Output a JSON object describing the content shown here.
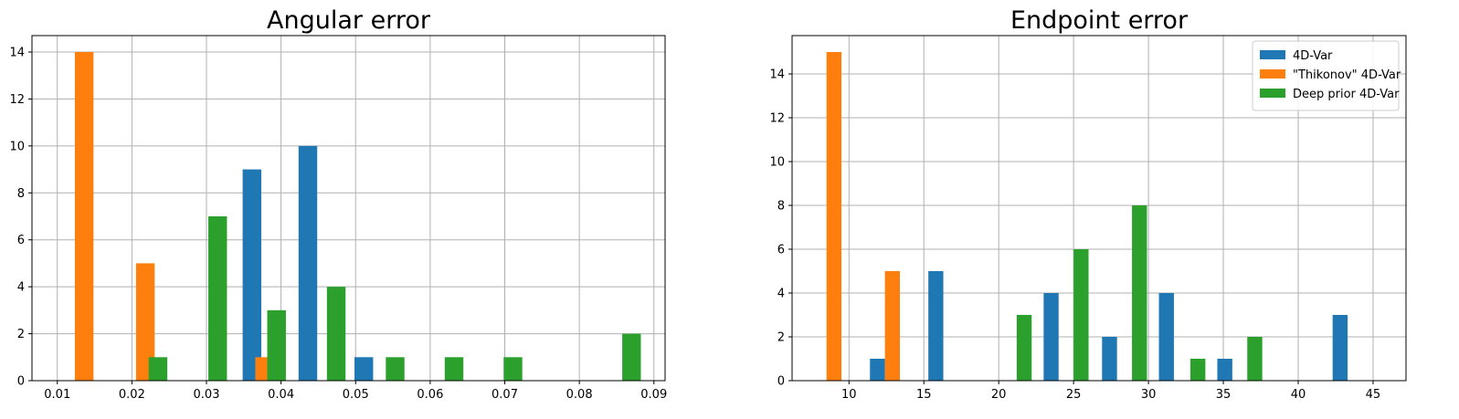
{
  "colors": {
    "4D-Var": "#1f77b4",
    "Thikonov": "#ff7f0e",
    "DeepPrior": "#2ca02c"
  },
  "chart_data": [
    {
      "type": "bar",
      "title": "Angular error",
      "xlabel": "",
      "ylabel": "",
      "xlim": [
        0.0066,
        0.0915
      ],
      "ylim": [
        0,
        14.7
      ],
      "xticks": [
        0.01,
        0.02,
        0.03,
        0.04,
        0.05,
        0.06,
        0.07,
        0.08,
        0.09
      ],
      "xtick_labels": [
        "0.01",
        "0.02",
        "0.03",
        "0.04",
        "0.05",
        "0.06",
        "0.07",
        "0.08",
        "0.09"
      ],
      "yticks": [
        0,
        2,
        4,
        6,
        8,
        10,
        12,
        14
      ],
      "ytick_labels": [
        "0",
        "2",
        "4",
        "6",
        "8",
        "10",
        "12",
        "14"
      ],
      "grid": true,
      "legend": null,
      "bar_width": 0.0025,
      "series": [
        {
          "key": "4D-Var",
          "points": [
            {
              "x": 0.0361,
              "y": 9
            },
            {
              "x": 0.0436,
              "y": 10
            },
            {
              "x": 0.0511,
              "y": 1
            }
          ]
        },
        {
          "key": "Thikonov",
          "points": [
            {
              "x": 0.0136,
              "y": 14
            },
            {
              "x": 0.0218,
              "y": 5
            },
            {
              "x": 0.0378,
              "y": 1
            }
          ]
        },
        {
          "key": "DeepPrior",
          "points": [
            {
              "x": 0.0235,
              "y": 1
            },
            {
              "x": 0.0315,
              "y": 7
            },
            {
              "x": 0.0394,
              "y": 3
            },
            {
              "x": 0.0474,
              "y": 4
            },
            {
              "x": 0.0553,
              "y": 1
            },
            {
              "x": 0.0632,
              "y": 1
            },
            {
              "x": 0.0711,
              "y": 1
            },
            {
              "x": 0.087,
              "y": 2
            }
          ]
        }
      ]
    },
    {
      "type": "bar",
      "title": "Endpoint error",
      "xlabel": "",
      "ylabel": "",
      "xlim": [
        6.2,
        47.2
      ],
      "ylim": [
        0,
        15.75
      ],
      "xticks": [
        10,
        15,
        20,
        25,
        30,
        35,
        40,
        45
      ],
      "xtick_labels": [
        "10",
        "15",
        "20",
        "25",
        "30",
        "35",
        "40",
        "45"
      ],
      "yticks": [
        0,
        2,
        4,
        6,
        8,
        10,
        12,
        14
      ],
      "ytick_labels": [
        "0",
        "2",
        "4",
        "6",
        "8",
        "10",
        "12",
        "14"
      ],
      "grid": true,
      "legend": {
        "position": "top-right",
        "entries": [
          {
            "key": "4D-Var",
            "label": "4D-Var"
          },
          {
            "key": "Thikonov",
            "label": "\"Thikonov\" 4D-Var"
          },
          {
            "key": "DeepPrior",
            "label": "Deep prior 4D-Var"
          }
        ]
      },
      "bar_width": 1.0,
      "series": [
        {
          "key": "4D-Var",
          "points": [
            {
              "x": 11.9,
              "y": 1
            },
            {
              "x": 15.8,
              "y": 5
            },
            {
              "x": 23.5,
              "y": 4
            },
            {
              "x": 27.4,
              "y": 2
            },
            {
              "x": 31.2,
              "y": 4
            },
            {
              "x": 35.1,
              "y": 1
            },
            {
              "x": 42.8,
              "y": 3
            }
          ]
        },
        {
          "key": "Thikonov",
          "points": [
            {
              "x": 9.0,
              "y": 15
            },
            {
              "x": 12.9,
              "y": 5
            }
          ]
        },
        {
          "key": "DeepPrior",
          "points": [
            {
              "x": 21.7,
              "y": 3
            },
            {
              "x": 25.5,
              "y": 6
            },
            {
              "x": 29.4,
              "y": 8
            },
            {
              "x": 33.3,
              "y": 1
            },
            {
              "x": 37.1,
              "y": 2
            }
          ]
        }
      ]
    }
  ]
}
